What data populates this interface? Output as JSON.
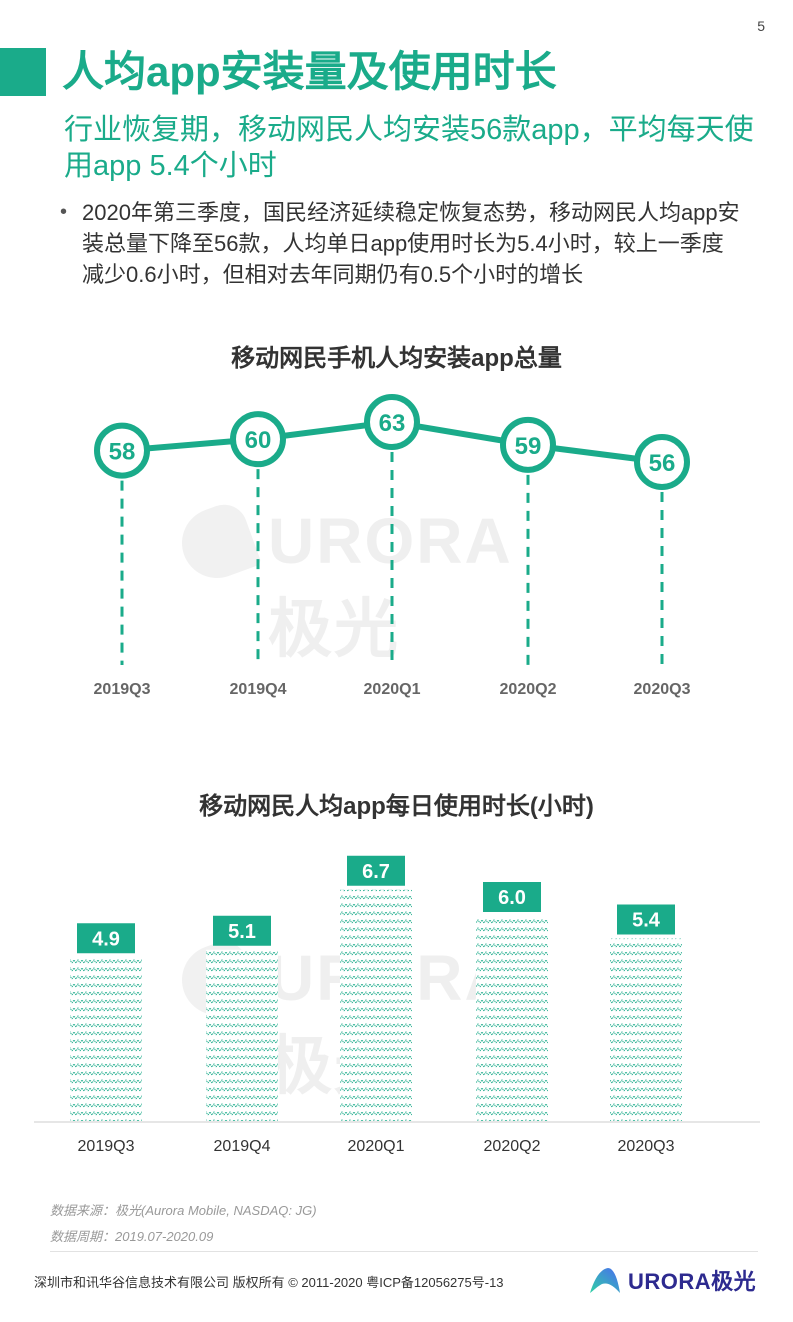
{
  "page_number": "5",
  "header": {
    "title": "人均app安装量及使用时长",
    "subtitle": "行业恢复期，移动网民人均安装56款app，平均每天使用app 5.4个小时"
  },
  "bullet": {
    "text": "2020年第三季度，国民经济延续稳定恢复态势，移动网民人均app安装总量下降至56款，人均单日app使用时长为5.4小时，较上一季度减少0.6小时，但相对去年同期仍有0.5个小时的增长"
  },
  "colors": {
    "accent": "#1aab8a",
    "title_text": "#333333",
    "axis_label": "#666666",
    "watermark": "#efefef",
    "logo_text": "#2d2a8f"
  },
  "watermark": {
    "text": "URORA极光"
  },
  "chart_data": [
    {
      "type": "line",
      "title": "移动网民手机人均安装app总量",
      "categories": [
        "2019Q3",
        "2019Q4",
        "2020Q1",
        "2020Q2",
        "2020Q3"
      ],
      "values": [
        58,
        60,
        63,
        59,
        56
      ],
      "labels": [
        "58",
        "60",
        "63",
        "59",
        "56"
      ],
      "xlabel": "",
      "ylabel": "",
      "grid": false,
      "marker": "circle"
    },
    {
      "type": "bar",
      "title": "移动网民人均app每日使用时长(小时)",
      "categories": [
        "2019Q3",
        "2019Q4",
        "2020Q1",
        "2020Q2",
        "2020Q3"
      ],
      "values": [
        4.9,
        5.1,
        6.7,
        6.0,
        5.4
      ],
      "labels": [
        "4.9",
        "5.1",
        "6.7",
        "6.0",
        "5.4"
      ],
      "xlabel": "",
      "ylabel": "小时",
      "grid": false
    }
  ],
  "source": {
    "line1": "数据来源：极光(Aurora Mobile, NASDAQ: JG)",
    "line2": "数据周期：2019.07-2020.09"
  },
  "footer": {
    "copyright": "深圳市和讯华谷信息技术有限公司 版权所有 © 2011-2020 粤ICP备12056275号-13",
    "logo_text": "URORA极光"
  }
}
